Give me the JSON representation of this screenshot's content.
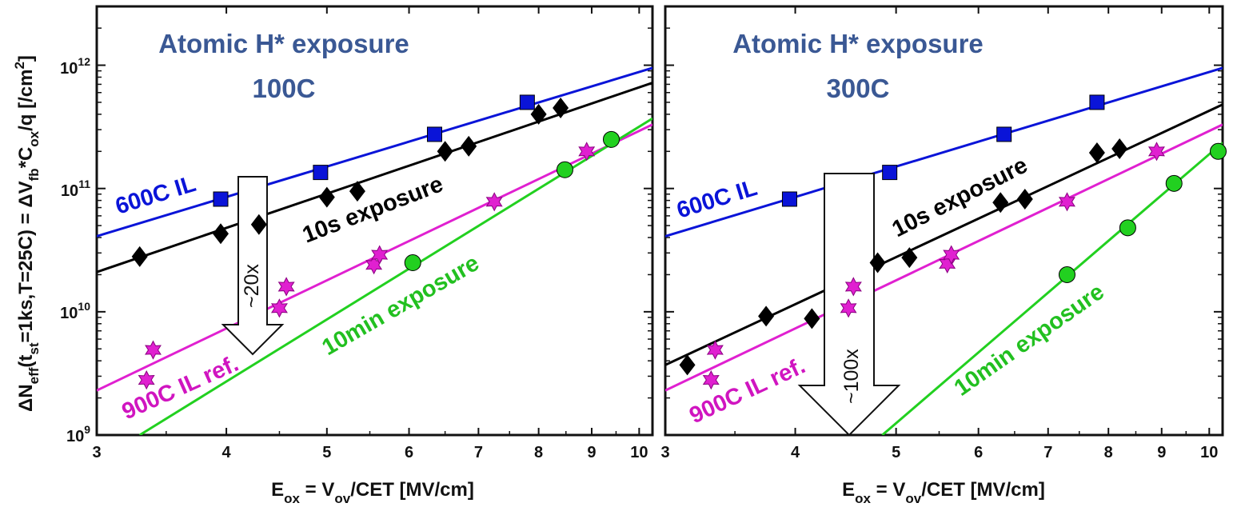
{
  "ylabel": "ΔN_eff(t_st=1ks,T=25C) = ΔV_fb*C_ox/q [/cm2]",
  "ylabel_parts": {
    "a": "ΔN",
    "a_sub": "eff",
    "b": "(t",
    "b_sub": "st",
    "c": "=1ks,T=25C) = ΔV",
    "c_sub": "fb",
    "d": "*C",
    "d_sub": "ox",
    "e": "/q [/cm",
    "e_sup": "2",
    "f": "]"
  },
  "xlabel_parts": {
    "a": "E",
    "a_sub": "ox",
    "b": " = V",
    "b_sub": "ov",
    "c": "/CET [MV/cm]"
  },
  "colors": {
    "ref600": "#0a14d8",
    "exp10s": "#000000",
    "ref900": "#e020d0",
    "exp10min": "#22d020",
    "title": "#3a5894"
  },
  "chart_data": [
    {
      "type": "scatter",
      "title_line1": "Atomic H* exposure",
      "title_line2": "100C",
      "xlabel": "E_ox = V_ov/CET [MV/cm]",
      "xscale": "log",
      "yscale": "log",
      "xlim": [
        3,
        10.3
      ],
      "ylim": [
        1000000000.0,
        3000000000000.0
      ],
      "xticks": [
        3,
        4,
        5,
        6,
        7,
        8,
        9,
        10
      ],
      "yticks": [
        1000000000.0,
        10000000000.0,
        100000000000.0,
        1000000000000.0
      ],
      "ytick_labels": [
        {
          "base": "10",
          "exp": "9"
        },
        {
          "base": "10",
          "exp": "10"
        },
        {
          "base": "10",
          "exp": "11"
        },
        {
          "base": "10",
          "exp": "12"
        }
      ],
      "series": [
        {
          "name": "600C IL",
          "key": "ref600",
          "marker": "square",
          "x": [
            3.95,
            4.93,
            6.35,
            7.8
          ],
          "y": [
            82000000000.0,
            135000000000.0,
            275000000000.0,
            500000000000.0
          ],
          "fit": [
            [
              3.0,
              41000000000.0
            ],
            [
              10.3,
              950000000000.0
            ]
          ]
        },
        {
          "name": "10s exposure",
          "key": "exp10s",
          "marker": "diamond",
          "x": [
            3.3,
            3.95,
            4.3,
            5.0,
            5.35,
            6.5,
            6.85,
            8.0,
            8.4
          ],
          "y": [
            28000000000.0,
            43000000000.0,
            51000000000.0,
            85000000000.0,
            95000000000.0,
            200000000000.0,
            220000000000.0,
            400000000000.0,
            450000000000.0
          ],
          "fit": [
            [
              3.0,
              21000000000.0
            ],
            [
              10.3,
              720000000000.0
            ]
          ]
        },
        {
          "name": "900C IL ref.",
          "key": "ref900",
          "marker": "star",
          "x": [
            3.4,
            3.35,
            4.5,
            4.57,
            5.55,
            5.62,
            7.25,
            8.9
          ],
          "y": [
            4900000000.0,
            2800000000.0,
            10700000000.0,
            16000000000.0,
            24000000000.0,
            29000000000.0,
            78000000000.0,
            200000000000.0
          ],
          "fit": [
            [
              3.0,
              2300000000.0
            ],
            [
              10.3,
              330000000000.0
            ]
          ]
        },
        {
          "name": "10min exposure",
          "key": "exp10min",
          "marker": "circle",
          "x": [
            6.05,
            8.48,
            9.4
          ],
          "y": [
            25000000000.0,
            142000000000.0,
            250000000000.0
          ],
          "fit": [
            [
              3.3,
              1000000000.0
            ],
            [
              10.3,
              370000000000.0
            ]
          ]
        }
      ],
      "arrow_label": "~20x",
      "labels": {
        "ref600": "600C IL",
        "exp10s": "10s exposure",
        "ref900": "900C IL ref.",
        "exp10min": "10min exposure"
      }
    },
    {
      "type": "scatter",
      "title_line1": "Atomic H* exposure",
      "title_line2": "300C",
      "xlabel": "E_ox = V_ov/CET [MV/cm]",
      "xscale": "log",
      "yscale": "log",
      "xlim": [
        3,
        10.3
      ],
      "ylim": [
        1000000000.0,
        3000000000000.0
      ],
      "xticks": [
        3,
        4,
        5,
        6,
        7,
        8,
        9,
        10
      ],
      "series": [
        {
          "name": "600C IL",
          "key": "ref600",
          "marker": "square",
          "x": [
            3.95,
            4.93,
            6.35,
            7.8
          ],
          "y": [
            82000000000.0,
            135000000000.0,
            275000000000.0,
            500000000000.0
          ],
          "fit": [
            [
              3.0,
              41000000000.0
            ],
            [
              10.3,
              950000000000.0
            ]
          ]
        },
        {
          "name": "10s exposure",
          "key": "exp10s",
          "marker": "diamond",
          "x": [
            3.15,
            3.75,
            4.15,
            4.8,
            5.15,
            6.3,
            6.65,
            7.8,
            8.2
          ],
          "y": [
            3700000000.0,
            9200000000.0,
            8800000000.0,
            25000000000.0,
            27500000000.0,
            77000000000.0,
            82000000000.0,
            195000000000.0,
            210000000000.0
          ],
          "fit": [
            [
              3.0,
              3700000000.0
            ],
            [
              10.3,
              480000000000.0
            ]
          ]
        },
        {
          "name": "900C IL ref.",
          "key": "ref900",
          "marker": "star",
          "x": [
            3.35,
            3.32,
            4.5,
            4.55,
            5.6,
            5.65,
            7.3,
            8.9
          ],
          "y": [
            4900000000.0,
            2800000000.0,
            10700000000.0,
            16000000000.0,
            24500000000.0,
            29000000000.0,
            78000000000.0,
            200000000000.0
          ],
          "fit": [
            [
              3.0,
              2300000000.0
            ],
            [
              10.3,
              330000000000.0
            ]
          ]
        },
        {
          "name": "10min exposure",
          "key": "exp10min",
          "marker": "circle",
          "x": [
            7.3,
            8.35,
            9.25,
            10.2
          ],
          "y": [
            20000000000.0,
            48000000000.0,
            110000000000.0,
            200000000000.0
          ],
          "fit": [
            [
              4.85,
              1000000000.0
            ],
            [
              10.3,
              235000000000.0
            ]
          ]
        }
      ],
      "arrow_label": "~100x",
      "labels": {
        "ref600": "600C IL",
        "exp10s": "10s exposure",
        "ref900": "900C IL ref.",
        "exp10min": "10min exposure"
      }
    }
  ]
}
